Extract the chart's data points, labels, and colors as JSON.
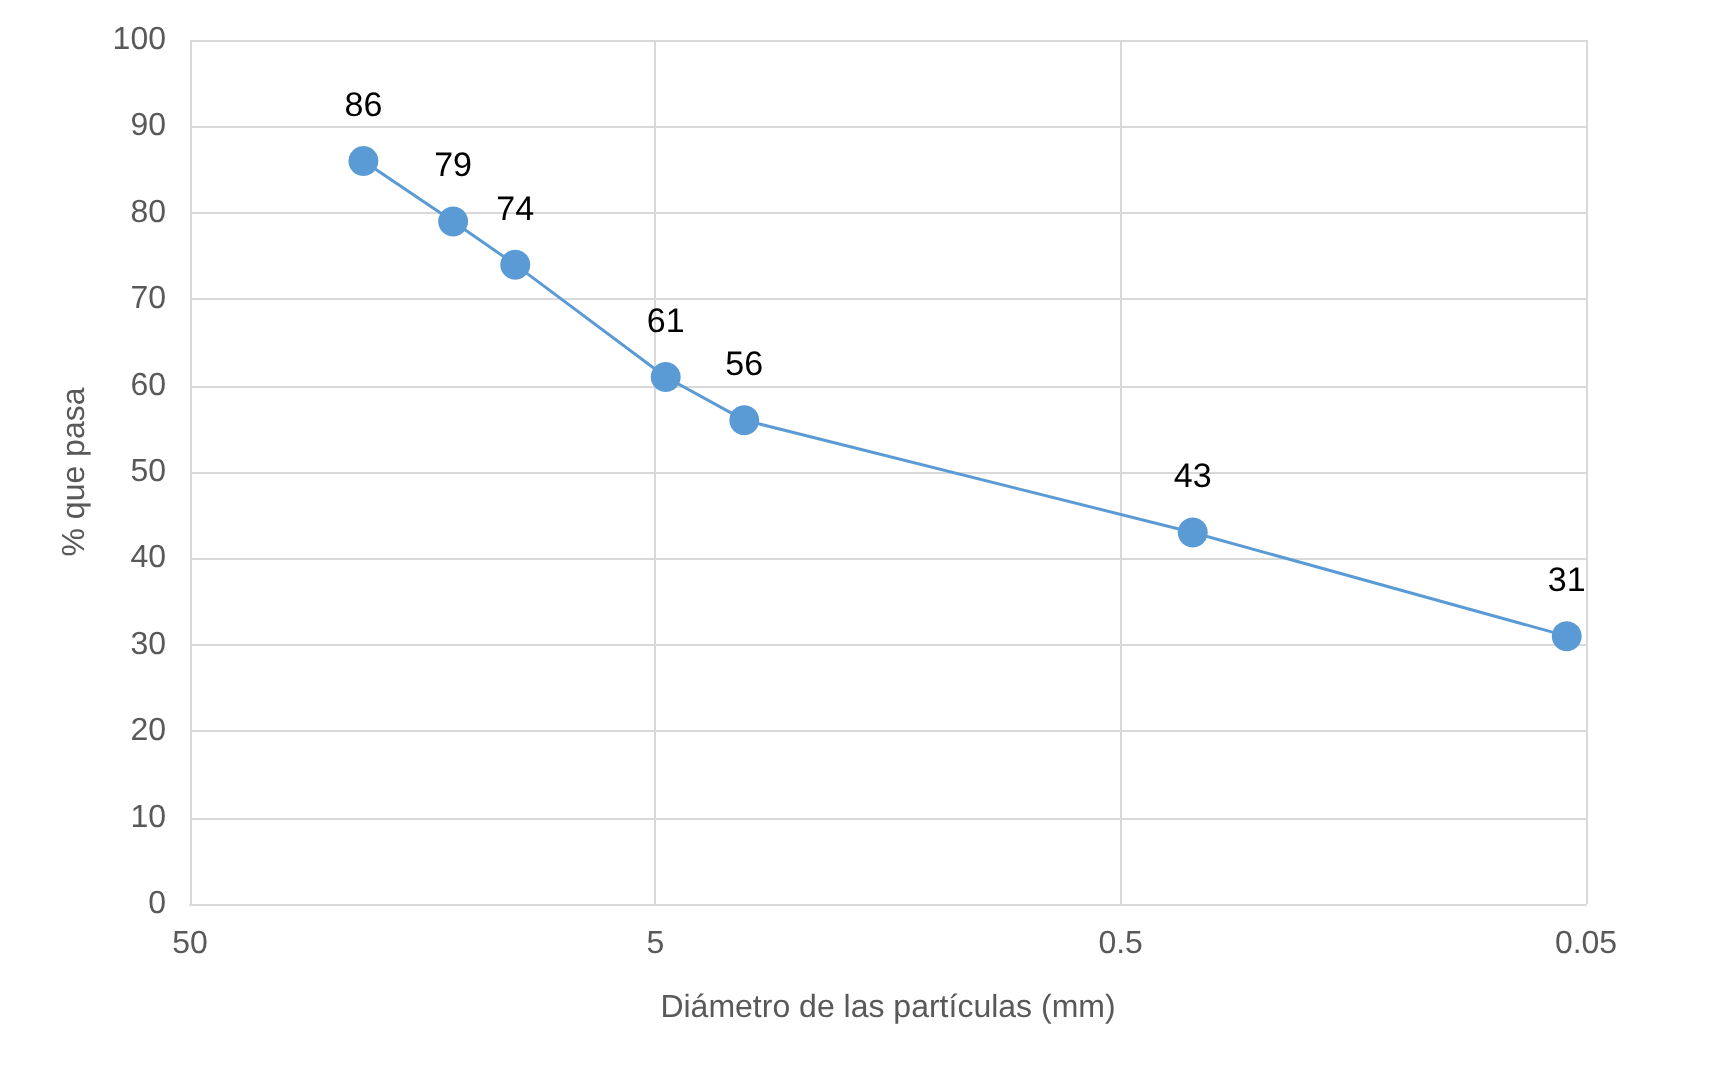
{
  "chart_data": {
    "type": "line",
    "xlabel": "Diámetro de las partículas (mm)",
    "ylabel": "% que pasa",
    "x": [
      21.2,
      13.6,
      10,
      4.75,
      3.22,
      0.35,
      0.055
    ],
    "series": [
      {
        "color": "#5b9bd5",
        "values": [
          86,
          79,
          74,
          61,
          56,
          43,
          31
        ]
      }
    ],
    "log": "x",
    "xlim": [
      50,
      0.05
    ],
    "xticks": [
      50,
      5,
      0.5,
      0.05
    ],
    "ylim": [
      0,
      100
    ],
    "yticks": [
      0,
      10,
      20,
      30,
      40,
      50,
      60,
      70,
      80,
      90,
      100
    ],
    "grid": true,
    "marker": "circle",
    "line_style": "solid",
    "data_labels": true
  }
}
